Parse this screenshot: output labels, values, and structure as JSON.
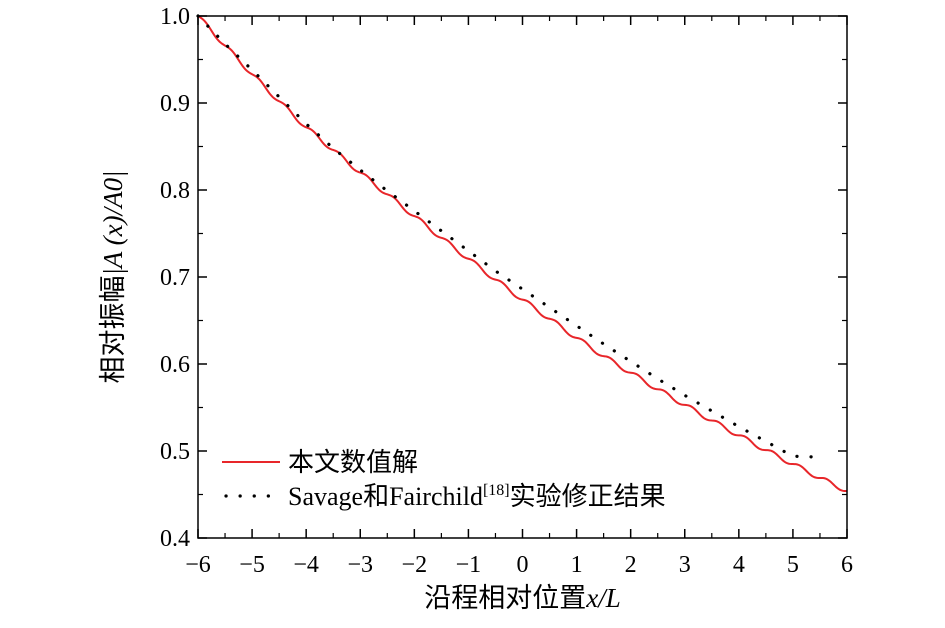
{
  "chart_data": {
    "type": "line",
    "xlabel_prefix": "沿程相对位置",
    "xlabel_var": "x/L",
    "ylabel_prefix": "相对振幅",
    "ylabel_var": "|A (x)/A0|",
    "xlim": [
      -6,
      6
    ],
    "ylim": [
      0.4,
      1.0
    ],
    "xticks": [
      -6,
      -5,
      -4,
      -3,
      -2,
      -1,
      0,
      1,
      2,
      3,
      4,
      5,
      6
    ],
    "xtick_labels": [
      "−6",
      "−5",
      "−4",
      "−3",
      "−2",
      "−1",
      "0",
      "1",
      "2",
      "3",
      "4",
      "5",
      "6"
    ],
    "yticks": [
      0.4,
      0.5,
      0.6,
      0.7,
      0.8,
      0.9,
      1.0
    ],
    "ytick_labels": [
      "0.4",
      "0.5",
      "0.6",
      "0.7",
      "0.8",
      "0.9",
      "1.0"
    ],
    "legend_position": "bottom-left",
    "series": [
      {
        "name": "本文数值解",
        "style": "solid",
        "color": "#e8262a",
        "x": [
          -6,
          -5.5,
          -5,
          -4.5,
          -4,
          -3.5,
          -3,
          -2.5,
          -2,
          -1.5,
          -1,
          -0.5,
          0,
          0.5,
          1,
          1.5,
          2,
          2.5,
          3,
          3.5,
          4,
          4.5,
          5,
          5.5,
          6
        ],
        "y": [
          1.0,
          0.966,
          0.933,
          0.902,
          0.872,
          0.846,
          0.82,
          0.795,
          0.77,
          0.745,
          0.721,
          0.697,
          0.674,
          0.652,
          0.63,
          0.609,
          0.59,
          0.571,
          0.553,
          0.535,
          0.518,
          0.501,
          0.485,
          0.469,
          0.454
        ]
      },
      {
        "name": "Savage和Fairchild[18]实验修正结果",
        "name_main": "Savage和Fairchild",
        "name_sup": "[18]",
        "name_tail": "实验修正结果",
        "style": "dotted",
        "color": "#000000",
        "x": [
          -6,
          -5.5,
          -5,
          -4.5,
          -4,
          -3.5,
          -3,
          -2.5,
          -2,
          -1.5,
          -1,
          -0.5,
          0,
          0.5,
          1,
          1.5,
          2,
          2.5,
          3,
          3.5,
          4,
          4.5,
          5,
          5.45
        ],
        "y": [
          1.0,
          0.968,
          0.938,
          0.907,
          0.876,
          0.848,
          0.823,
          0.799,
          0.776,
          0.753,
          0.73,
          0.707,
          0.686,
          0.665,
          0.644,
          0.623,
          0.603,
          0.583,
          0.564,
          0.546,
          0.528,
          0.511,
          0.494,
          0.493
        ]
      }
    ]
  }
}
